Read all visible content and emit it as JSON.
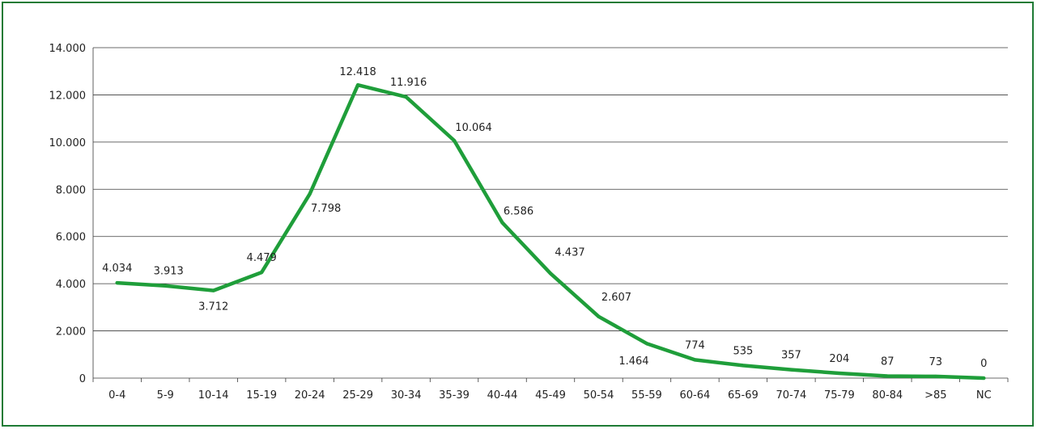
{
  "chart_data": {
    "type": "line",
    "categories": [
      "0-4",
      "5-9",
      "10-14",
      "15-19",
      "20-24",
      "25-29",
      "30-34",
      "35-39",
      "40-44",
      "45-49",
      "50-54",
      "55-59",
      "60-64",
      "65-69",
      "70-74",
      "75-79",
      "80-84",
      ">85",
      "NC"
    ],
    "series": [
      {
        "values": [
          4034,
          3913,
          3712,
          4479,
          7798,
          12418,
          11916,
          10064,
          6586,
          4437,
          2607,
          1464,
          774,
          535,
          357,
          204,
          87,
          73,
          0
        ],
        "data_labels": [
          "4.034",
          "3.913",
          "3.712",
          "4.479",
          "7.798",
          "12.418",
          "11.916",
          "10.064",
          "6.586",
          "4.437",
          "2.607",
          "1.464",
          "774",
          "535",
          "357",
          "204",
          "87",
          "73",
          "0"
        ],
        "color": "#1f9e3a"
      }
    ],
    "ylim": [
      0,
      14000
    ],
    "y_ticks": [
      0,
      2000,
      4000,
      6000,
      8000,
      10000,
      12000,
      14000
    ],
    "y_tick_labels": [
      "0",
      "2.000",
      "4.000",
      "6.000",
      "8.000",
      "10.000",
      "12.000",
      "14.000"
    ],
    "grid": true,
    "legend": "none",
    "title": "",
    "xlabel": "",
    "ylabel": ""
  },
  "colors": {
    "frame_border": "#1e7b35",
    "line": "#1f9e3a",
    "grid": "#3a3a3a"
  }
}
